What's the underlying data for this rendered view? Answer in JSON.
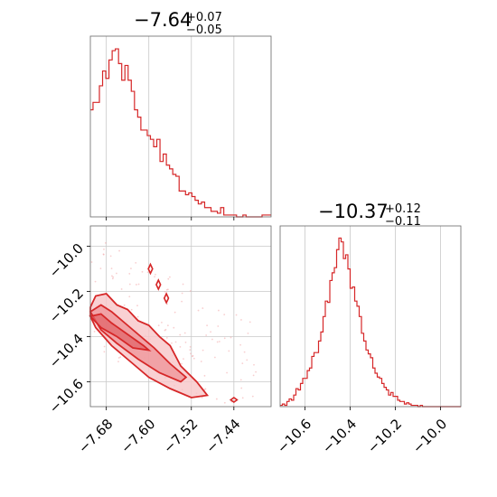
{
  "chart_data": [
    {
      "type": "histogram",
      "panel": "top-left",
      "title_value": "−7.64",
      "title_plus": "+0.07",
      "title_minus": "−0.05",
      "x_range": [
        -7.71,
        -7.37
      ],
      "x_ticks": [
        -7.68,
        -7.6,
        -7.52,
        -7.44
      ],
      "grid": true,
      "color": "#d62728",
      "bins_x": [
        -7.708,
        -7.702,
        -7.696,
        -7.69,
        -7.684,
        -7.678,
        -7.672,
        -7.666,
        -7.66,
        -7.654,
        -7.648,
        -7.642,
        -7.636,
        -7.63,
        -7.624,
        -7.618,
        -7.612,
        -7.606,
        -7.6,
        -7.594,
        -7.588,
        -7.582,
        -7.576,
        -7.57,
        -7.564,
        -7.558,
        -7.552,
        -7.546,
        -7.54,
        -7.534,
        -7.528,
        -7.522,
        -7.516,
        -7.51,
        -7.504,
        -7.498,
        -7.492,
        -7.486,
        -7.48,
        -7.474,
        -7.468,
        -7.462,
        -7.456,
        -7.45,
        -7.444,
        -7.438,
        -7.432,
        -7.426,
        -7.42,
        -7.414,
        -7.408,
        -7.402,
        -7.396,
        -7.39,
        -7.384,
        -7.378,
        -7.372
      ],
      "counts": [
        58,
        62,
        62,
        71,
        79,
        75,
        85,
        90,
        91,
        83,
        74,
        82,
        74,
        68,
        58,
        54,
        47,
        47,
        44,
        42,
        38,
        42,
        30,
        34,
        28,
        26,
        23,
        22,
        14,
        14,
        12,
        13,
        11,
        9,
        7,
        8,
        5,
        5,
        3,
        3,
        2,
        5,
        1,
        1,
        1,
        1,
        0,
        0,
        1,
        0,
        0,
        0,
        0,
        0,
        1,
        1,
        1
      ],
      "y_max": 92
    },
    {
      "type": "contour",
      "panel": "bottom-left",
      "x_range": [
        -7.71,
        -7.37
      ],
      "y_range": [
        -10.71,
        -9.91
      ],
      "x_ticks": [
        -7.68,
        -7.6,
        -7.52,
        -7.44
      ],
      "y_ticks": [
        -10.0,
        -10.2,
        -10.4,
        -10.6
      ],
      "grid": true,
      "color": "#d62728",
      "outer_contour": [
        [
          -7.71,
          -10.27
        ],
        [
          -7.7,
          -10.22
        ],
        [
          -7.68,
          -10.21
        ],
        [
          -7.66,
          -10.26
        ],
        [
          -7.64,
          -10.28
        ],
        [
          -7.62,
          -10.33
        ],
        [
          -7.6,
          -10.35
        ],
        [
          -7.58,
          -10.4
        ],
        [
          -7.56,
          -10.44
        ],
        [
          -7.54,
          -10.53
        ],
        [
          -7.51,
          -10.6
        ],
        [
          -7.49,
          -10.66
        ],
        [
          -7.52,
          -10.67
        ],
        [
          -7.56,
          -10.63
        ],
        [
          -7.6,
          -10.58
        ],
        [
          -7.64,
          -10.5
        ],
        [
          -7.67,
          -10.44
        ],
        [
          -7.7,
          -10.36
        ],
        [
          -7.71,
          -10.31
        ]
      ],
      "middle_contour": [
        [
          -7.71,
          -10.29
        ],
        [
          -7.69,
          -10.26
        ],
        [
          -7.67,
          -10.29
        ],
        [
          -7.65,
          -10.33
        ],
        [
          -7.62,
          -10.39
        ],
        [
          -7.59,
          -10.45
        ],
        [
          -7.56,
          -10.52
        ],
        [
          -7.53,
          -10.58
        ],
        [
          -7.54,
          -10.6
        ],
        [
          -7.58,
          -10.56
        ],
        [
          -7.62,
          -10.5
        ],
        [
          -7.66,
          -10.43
        ],
        [
          -7.69,
          -10.37
        ]
      ],
      "inner_contour": [
        [
          -7.71,
          -10.31
        ],
        [
          -7.69,
          -10.3
        ],
        [
          -7.67,
          -10.34
        ],
        [
          -7.64,
          -10.39
        ],
        [
          -7.61,
          -10.44
        ],
        [
          -7.6,
          -10.46
        ],
        [
          -7.63,
          -10.45
        ],
        [
          -7.66,
          -10.4
        ],
        [
          -7.69,
          -10.36
        ]
      ],
      "outlier_contours": [
        [
          [
            -7.601,
            -10.1
          ],
          [
            -7.597,
            -10.08
          ],
          [
            -7.593,
            -10.1
          ],
          [
            -7.597,
            -10.12
          ]
        ],
        [
          [
            -7.586,
            -10.17
          ],
          [
            -7.582,
            -10.15
          ],
          [
            -7.578,
            -10.17
          ],
          [
            -7.582,
            -10.19
          ]
        ],
        [
          [
            -7.571,
            -10.23
          ],
          [
            -7.567,
            -10.21
          ],
          [
            -7.563,
            -10.23
          ],
          [
            -7.567,
            -10.25
          ]
        ],
        [
          [
            -7.446,
            -10.68
          ],
          [
            -7.44,
            -10.67
          ],
          [
            -7.434,
            -10.68
          ],
          [
            -7.44,
            -10.69
          ]
        ]
      ]
    },
    {
      "type": "histogram",
      "panel": "bottom-right",
      "title_value": "−10.37",
      "title_plus": "+0.12",
      "title_minus": "−0.11",
      "x_range": [
        -10.71,
        -9.91
      ],
      "x_ticks": [
        -10.6,
        -10.4,
        -10.2,
        -10.0
      ],
      "grid": true,
      "color": "#d62728",
      "bins_x": [
        -10.705,
        -10.695,
        -10.685,
        -10.675,
        -10.665,
        -10.655,
        -10.645,
        -10.635,
        -10.625,
        -10.615,
        -10.605,
        -10.595,
        -10.585,
        -10.575,
        -10.565,
        -10.555,
        -10.545,
        -10.535,
        -10.525,
        -10.515,
        -10.505,
        -10.495,
        -10.485,
        -10.475,
        -10.465,
        -10.455,
        -10.445,
        -10.435,
        -10.425,
        -10.415,
        -10.405,
        -10.395,
        -10.385,
        -10.375,
        -10.365,
        -10.355,
        -10.345,
        -10.335,
        -10.325,
        -10.315,
        -10.305,
        -10.295,
        -10.285,
        -10.275,
        -10.265,
        -10.255,
        -10.245,
        -10.235,
        -10.225,
        -10.215,
        -10.205,
        -10.195,
        -10.185,
        -10.175,
        -10.165,
        -10.155,
        -10.145,
        -10.135,
        -10.125,
        -10.115,
        -10.105,
        -10.095,
        -10.085,
        -10.075,
        -10.065,
        -10.055,
        -10.045,
        -10.035,
        -10.025,
        -10.015,
        -10.005,
        -9.995,
        -9.985,
        -9.975,
        -9.965,
        -9.955,
        -9.945,
        -9.935,
        -9.925,
        -9.915
      ],
      "counts": [
        1,
        2,
        1,
        4,
        6,
        5,
        9,
        14,
        13,
        18,
        22,
        22,
        28,
        30,
        39,
        42,
        42,
        51,
        58,
        70,
        82,
        81,
        98,
        104,
        108,
        122,
        131,
        128,
        115,
        118,
        107,
        92,
        93,
        82,
        78,
        70,
        57,
        51,
        44,
        41,
        38,
        30,
        26,
        23,
        22,
        18,
        15,
        13,
        9,
        11,
        8,
        8,
        5,
        4,
        4,
        2,
        3,
        2,
        1,
        1,
        1,
        0,
        1,
        0,
        0,
        0,
        0,
        0,
        0,
        0,
        0,
        0,
        0,
        0,
        0,
        0,
        0,
        0,
        0,
        0
      ],
      "y_max": 132
    }
  ]
}
